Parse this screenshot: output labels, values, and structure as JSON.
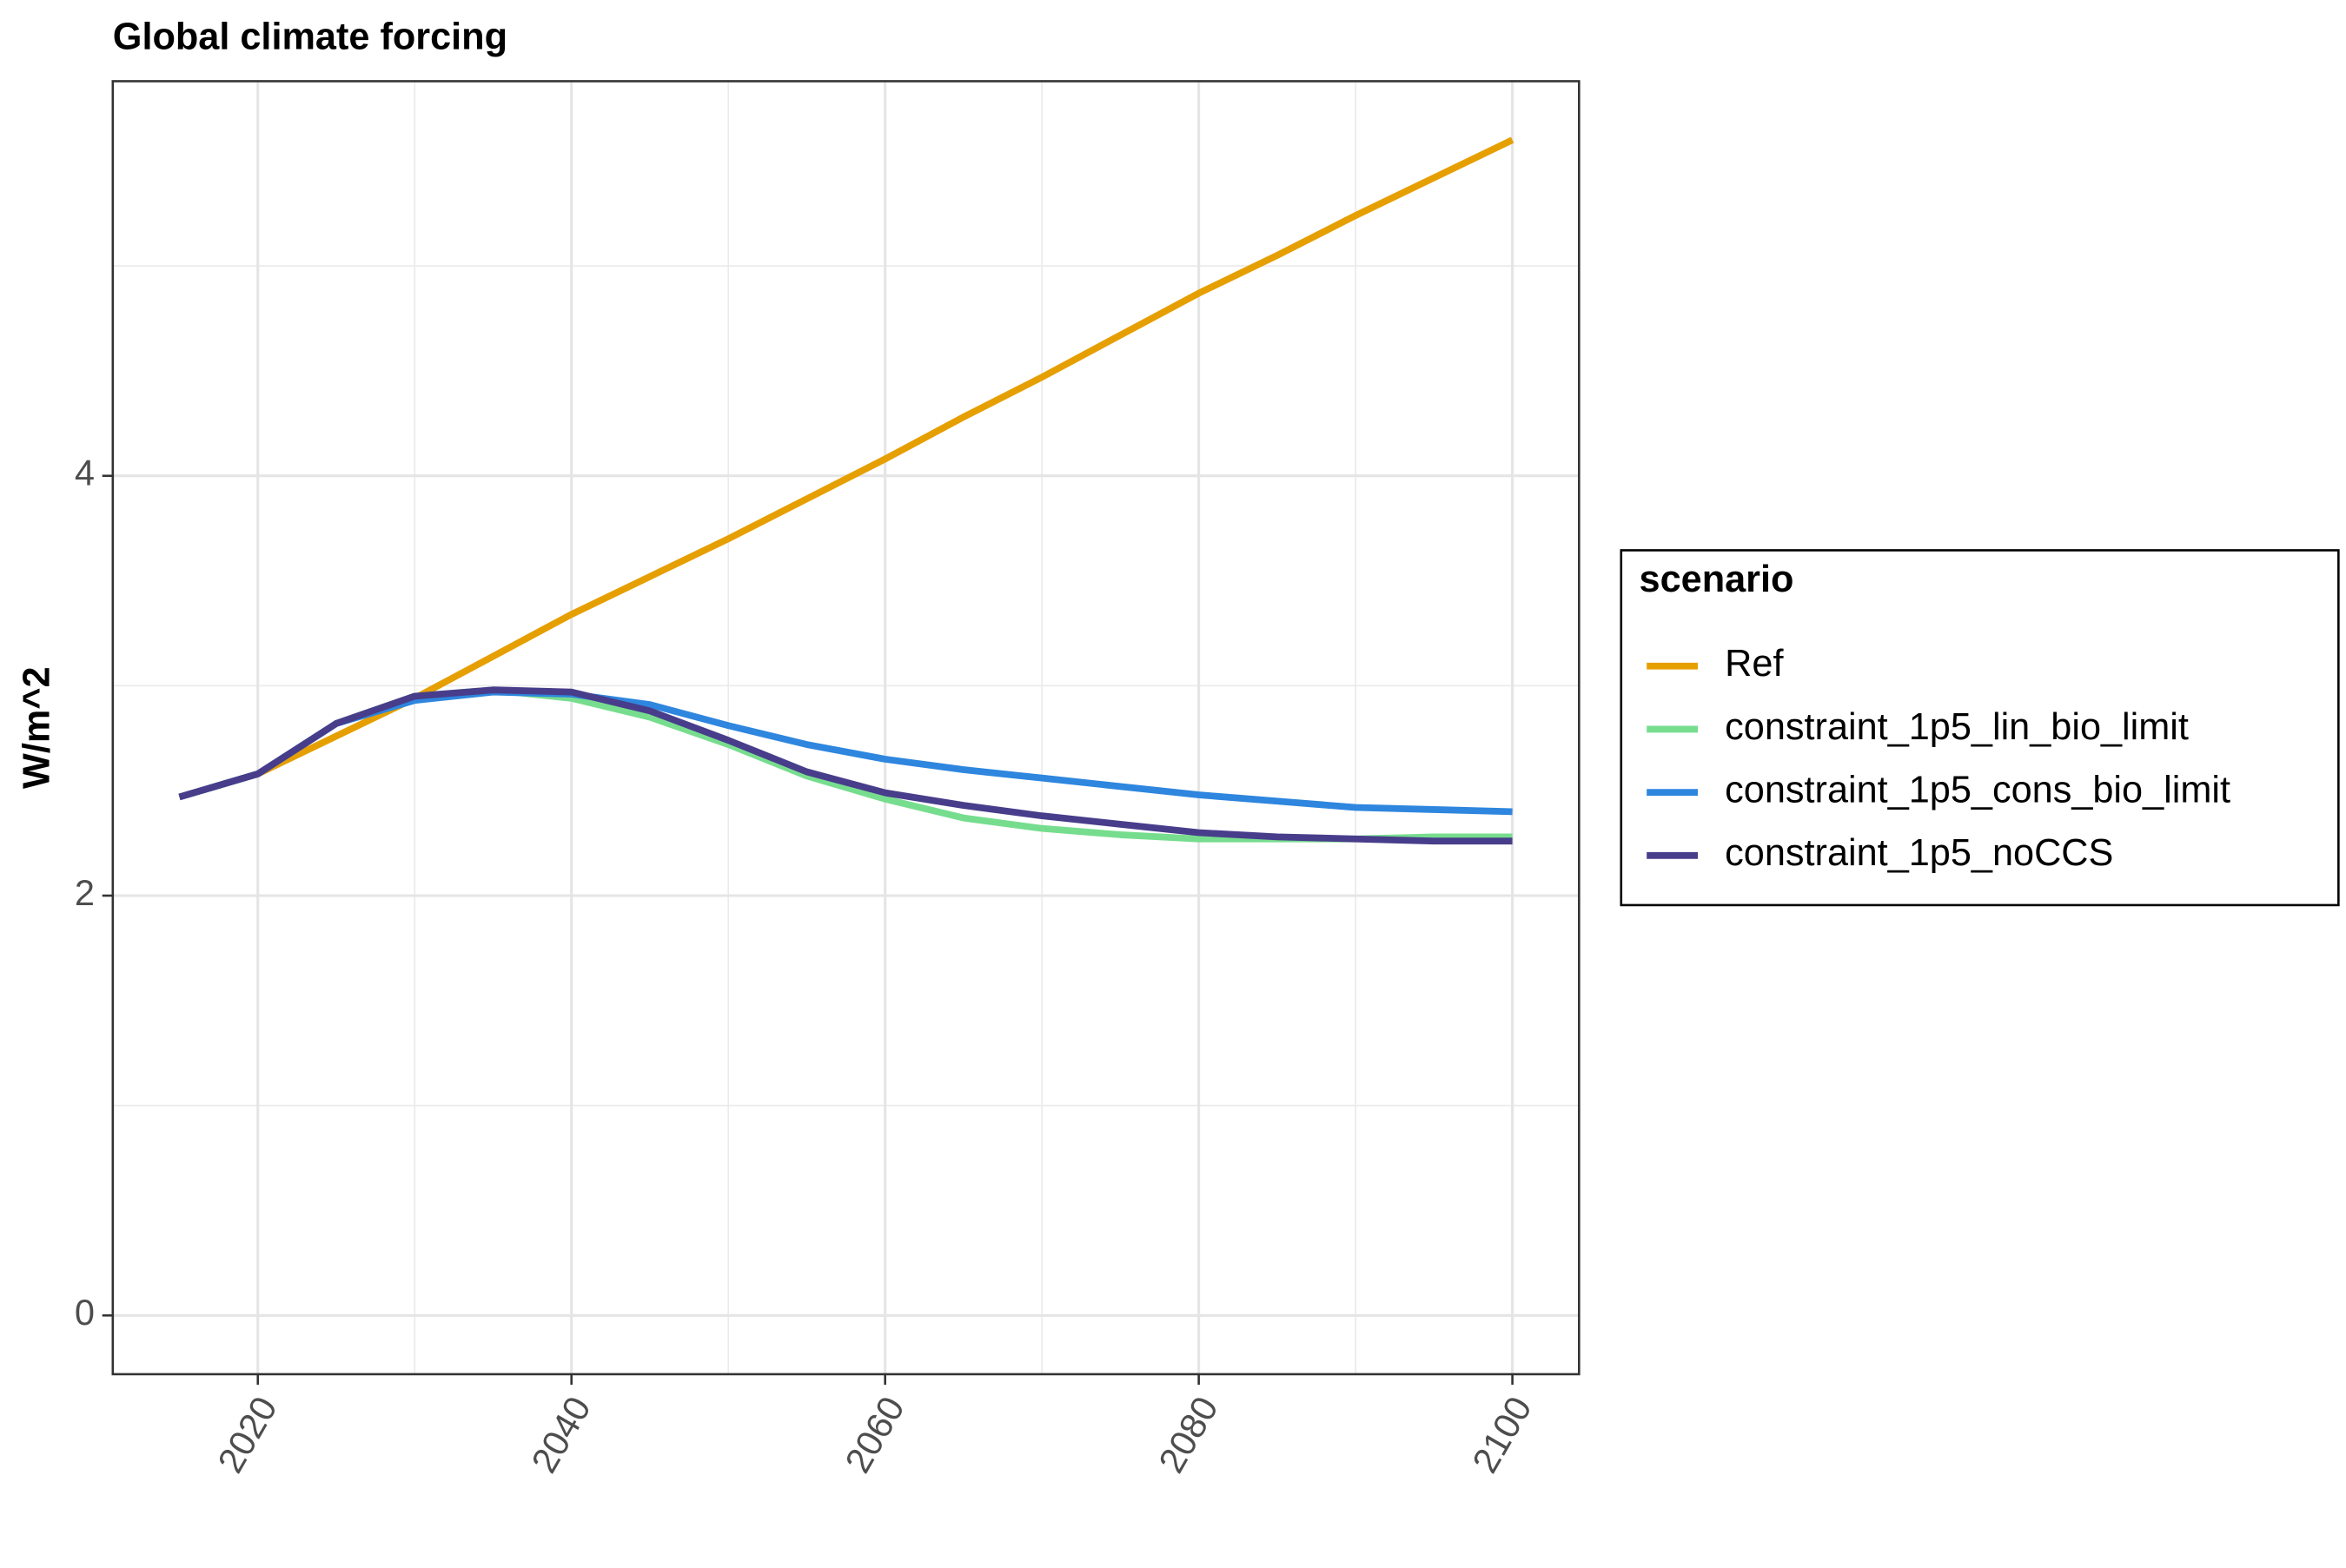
{
  "chart_data": {
    "type": "line",
    "title": "Global climate forcing",
    "y_label": "W/m^2",
    "x": [
      2015,
      2020,
      2025,
      2030,
      2035,
      2040,
      2045,
      2050,
      2055,
      2060,
      2065,
      2070,
      2075,
      2080,
      2085,
      2090,
      2095,
      2100
    ],
    "xlim": [
      2010.75,
      2104.25
    ],
    "xticks": [
      2020,
      2040,
      2060,
      2080,
      2100
    ],
    "ylim": [
      -0.28,
      5.88
    ],
    "yticks": [
      0,
      2,
      4
    ],
    "grid": true,
    "legend_title": "scenario",
    "legend_position": "right",
    "series": [
      {
        "name": "Ref",
        "color": "#E69F00",
        "values": [
          2.47,
          2.58,
          2.76,
          2.94,
          3.14,
          3.34,
          3.52,
          3.7,
          3.89,
          4.08,
          4.28,
          4.47,
          4.67,
          4.87,
          5.05,
          5.24,
          5.42,
          5.6
        ]
      },
      {
        "name": "constraint_1p5_lin_bio_limit",
        "color": "#77DD8E",
        "values": [
          2.47,
          2.58,
          2.82,
          2.95,
          2.98,
          2.94,
          2.85,
          2.72,
          2.57,
          2.46,
          2.37,
          2.32,
          2.29,
          2.27,
          2.27,
          2.27,
          2.28,
          2.28
        ]
      },
      {
        "name": "constraint_1p5_cons_bio_limit",
        "color": "#2E86DE",
        "values": [
          2.47,
          2.58,
          2.82,
          2.93,
          2.97,
          2.96,
          2.91,
          2.81,
          2.72,
          2.65,
          2.6,
          2.56,
          2.52,
          2.48,
          2.45,
          2.42,
          2.41,
          2.4
        ]
      },
      {
        "name": "constraint_1p5_noCCS",
        "color": "#483D8B",
        "values": [
          2.47,
          2.58,
          2.82,
          2.95,
          2.98,
          2.97,
          2.88,
          2.74,
          2.59,
          2.49,
          2.43,
          2.38,
          2.34,
          2.3,
          2.28,
          2.27,
          2.26,
          2.26
        ]
      }
    ]
  }
}
